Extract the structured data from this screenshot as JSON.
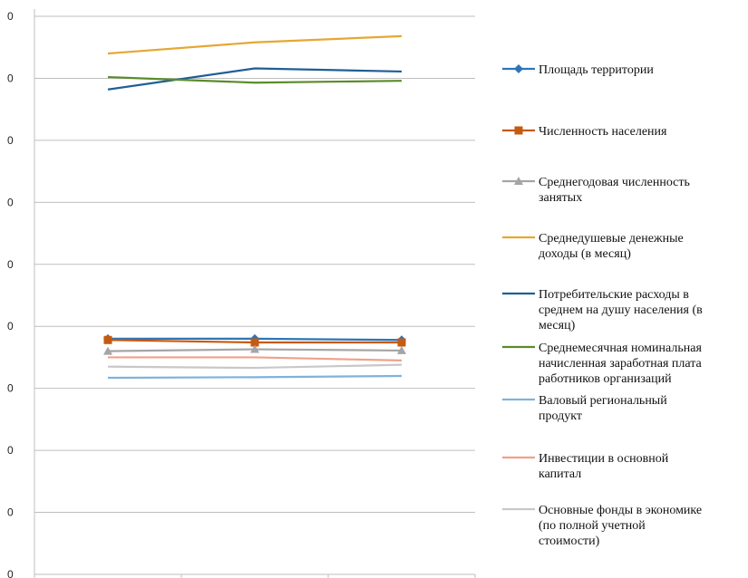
{
  "chart_data": {
    "type": "line",
    "categories": [
      "",
      "",
      ""
    ],
    "y_tick_labels": [
      "0",
      "0",
      "0",
      "0",
      "0",
      "0",
      "0",
      "0",
      "0",
      "0"
    ],
    "ylim": [
      0,
      9
    ],
    "grid": true,
    "legend_position": "right",
    "series": [
      {
        "name": "Площадь территории",
        "color": "#2e75b6",
        "marker": "diamond",
        "values": [
          3.8,
          3.8,
          3.78
        ]
      },
      {
        "name": "Численность населения",
        "color": "#c55a11",
        "marker": "square",
        "values": [
          3.78,
          3.74,
          3.74
        ]
      },
      {
        "name": "Среднегодовая численность занятых",
        "color": "#a5a5a5",
        "marker": "triangle",
        "values": [
          3.6,
          3.63,
          3.61
        ]
      },
      {
        "name": "Среднедушевые денежные доходы (в месяц)",
        "color": "#e6a733",
        "marker": "none",
        "values": [
          8.4,
          8.58,
          8.68
        ]
      },
      {
        "name": "Потребительские расходы в среднем на душу населения (в месяц)",
        "color": "#1f5f96",
        "marker": "none",
        "values": [
          7.82,
          8.16,
          8.11
        ]
      },
      {
        "name": "Среднемесячная номинальная начисленная заработная плата работников организаций",
        "color": "#5b8c2a",
        "marker": "none",
        "values": [
          8.02,
          7.93,
          7.96
        ]
      },
      {
        "name": "Валовый региональный продукт",
        "color": "#7fb2dc",
        "marker": "none",
        "values": [
          3.17,
          3.18,
          3.2
        ]
      },
      {
        "name": "Инвестиции в основной капитал",
        "color": "#f0a08a",
        "marker": "none",
        "values": [
          3.5,
          3.5,
          3.45
        ]
      },
      {
        "name": "Основные фонды в экономике (по полной учетной стоимости)",
        "color": "#c8c8c8",
        "marker": "none",
        "values": [
          3.35,
          3.33,
          3.38
        ]
      }
    ]
  }
}
